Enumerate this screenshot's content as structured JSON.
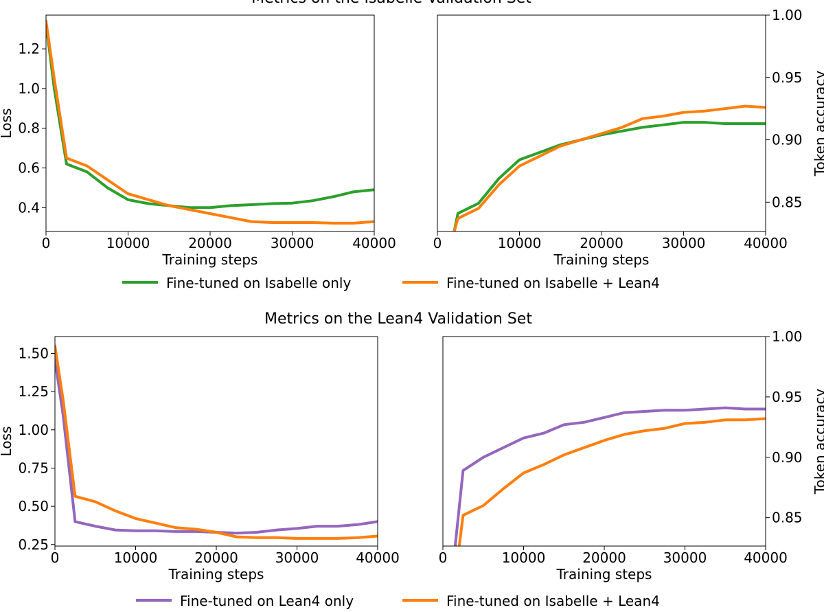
{
  "figure": {
    "top_title": "Metrics on the Isabelle Validation Set",
    "bottom_title": "Metrics on the Lean4 Validation Set"
  },
  "colors": {
    "green": "#2ca02c",
    "orange": "#ff7f0e",
    "purple": "#9467bd"
  },
  "legends": {
    "top": [
      {
        "label": "Fine-tuned on Isabelle only",
        "color": "#2ca02c"
      },
      {
        "label": "Fine-tuned on Isabelle + Lean4",
        "color": "#ff7f0e"
      }
    ],
    "bottom": [
      {
        "label": "Fine-tuned on Lean4 only",
        "color": "#9467bd"
      },
      {
        "label": "Fine-tuned on Isabelle + Lean4",
        "color": "#ff7f0e"
      }
    ]
  },
  "chart_data": [
    {
      "type": "line",
      "title": "Metrics on the Isabelle Validation Set",
      "xlabel": "Training steps",
      "ylabel": "Loss",
      "xlim": [
        0,
        40000
      ],
      "ylim": [
        0.28,
        1.37
      ],
      "xticks": [
        0,
        10000,
        20000,
        30000,
        40000
      ],
      "yticks": [
        0.4,
        0.6,
        0.8,
        1.0,
        1.2
      ],
      "yaxis_side": "left",
      "series": [
        {
          "name": "Fine-tuned on Isabelle only",
          "color": "#2ca02c",
          "x": [
            0,
            1000,
            2500,
            5000,
            7500,
            10000,
            12500,
            15000,
            17500,
            20000,
            22500,
            25000,
            27500,
            30000,
            32500,
            35000,
            37500,
            40000
          ],
          "y": [
            1.33,
            1.0,
            0.62,
            0.58,
            0.5,
            0.44,
            0.42,
            0.41,
            0.4,
            0.4,
            0.41,
            0.415,
            0.42,
            0.423,
            0.435,
            0.455,
            0.48,
            0.49
          ]
        },
        {
          "name": "Fine-tuned on Isabelle + Lean4",
          "color": "#ff7f0e",
          "x": [
            0,
            1000,
            2500,
            5000,
            7500,
            10000,
            12500,
            15000,
            17500,
            20000,
            22500,
            25000,
            27500,
            30000,
            32500,
            35000,
            37500,
            40000
          ],
          "y": [
            1.34,
            1.05,
            0.65,
            0.61,
            0.54,
            0.47,
            0.44,
            0.41,
            0.39,
            0.37,
            0.35,
            0.33,
            0.325,
            0.325,
            0.325,
            0.322,
            0.322,
            0.33
          ]
        }
      ]
    },
    {
      "type": "line",
      "title": "",
      "xlabel": "Training steps",
      "ylabel": "Token accuracy",
      "xlim": [
        0,
        40000
      ],
      "ylim": [
        0.8265,
        1.0
      ],
      "xticks": [
        0,
        10000,
        20000,
        30000,
        40000
      ],
      "yticks": [
        0.85,
        0.9,
        0.95,
        1.0
      ],
      "yaxis_side": "right",
      "series": [
        {
          "name": "Fine-tuned on Isabelle only",
          "color": "#2ca02c",
          "x": [
            2000,
            2500,
            5000,
            7500,
            10000,
            12500,
            15000,
            17500,
            20000,
            22500,
            25000,
            27500,
            30000,
            32500,
            35000,
            37500,
            40000
          ],
          "y": [
            0.825,
            0.841,
            0.849,
            0.869,
            0.884,
            0.89,
            0.896,
            0.9,
            0.904,
            0.907,
            0.91,
            0.912,
            0.914,
            0.914,
            0.913,
            0.913,
            0.913
          ]
        },
        {
          "name": "Fine-tuned on Isabelle + Lean4",
          "color": "#ff7f0e",
          "x": [
            2000,
            2500,
            5000,
            7500,
            10000,
            12500,
            15000,
            17500,
            20000,
            22500,
            25000,
            27500,
            30000,
            32500,
            35000,
            37500,
            40000
          ],
          "y": [
            0.825,
            0.837,
            0.845,
            0.864,
            0.879,
            0.887,
            0.895,
            0.9,
            0.905,
            0.91,
            0.917,
            0.919,
            0.922,
            0.923,
            0.925,
            0.927,
            0.926
          ]
        }
      ]
    },
    {
      "type": "line",
      "title": "Metrics on the Lean4 Validation Set",
      "xlabel": "Training steps",
      "ylabel": "Loss",
      "xlim": [
        0,
        40000
      ],
      "ylim": [
        0.24,
        1.61
      ],
      "xticks": [
        0,
        10000,
        20000,
        30000,
        40000
      ],
      "yticks": [
        0.25,
        0.5,
        0.75,
        1.0,
        1.25,
        1.5
      ],
      "yaxis_side": "left",
      "series": [
        {
          "name": "Fine-tuned on Lean4 only",
          "color": "#9467bd",
          "x": [
            0,
            1000,
            2500,
            5000,
            7500,
            10000,
            12500,
            15000,
            17500,
            20000,
            22500,
            25000,
            27500,
            30000,
            32500,
            35000,
            37500,
            40000
          ],
          "y": [
            1.46,
            1.1,
            0.4,
            0.37,
            0.345,
            0.34,
            0.34,
            0.335,
            0.335,
            0.33,
            0.325,
            0.33,
            0.345,
            0.355,
            0.37,
            0.37,
            0.38,
            0.4
          ]
        },
        {
          "name": "Fine-tuned on Isabelle + Lean4",
          "color": "#ff7f0e",
          "x": [
            0,
            1000,
            2500,
            5000,
            7500,
            10000,
            12500,
            15000,
            17500,
            20000,
            22500,
            25000,
            27500,
            30000,
            32500,
            35000,
            37500,
            40000
          ],
          "y": [
            1.55,
            1.2,
            0.565,
            0.53,
            0.47,
            0.42,
            0.39,
            0.36,
            0.35,
            0.33,
            0.3,
            0.295,
            0.295,
            0.29,
            0.29,
            0.29,
            0.295,
            0.305
          ]
        }
      ]
    },
    {
      "type": "line",
      "title": "",
      "xlabel": "Training steps",
      "ylabel": "Token accuracy",
      "xlim": [
        0,
        40000
      ],
      "ylim": [
        0.8265,
        1.0
      ],
      "xticks": [
        0,
        10000,
        20000,
        30000,
        40000
      ],
      "yticks": [
        0.85,
        0.9,
        0.95,
        1.0
      ],
      "yaxis_side": "right",
      "series": [
        {
          "name": "Fine-tuned on Lean4 only",
          "color": "#9467bd",
          "x": [
            1500,
            2500,
            5000,
            7500,
            10000,
            12500,
            15000,
            17500,
            20000,
            22500,
            25000,
            27500,
            30000,
            32500,
            35000,
            37500,
            40000
          ],
          "y": [
            0.825,
            0.889,
            0.9,
            0.908,
            0.916,
            0.92,
            0.927,
            0.929,
            0.933,
            0.937,
            0.938,
            0.939,
            0.939,
            0.94,
            0.941,
            0.94,
            0.94
          ]
        },
        {
          "name": "Fine-tuned on Isabelle + Lean4",
          "color": "#ff7f0e",
          "x": [
            2000,
            2500,
            5000,
            7500,
            10000,
            12500,
            15000,
            17500,
            20000,
            22500,
            25000,
            27500,
            30000,
            32500,
            35000,
            37500,
            40000
          ],
          "y": [
            0.825,
            0.852,
            0.86,
            0.874,
            0.887,
            0.894,
            0.902,
            0.908,
            0.914,
            0.919,
            0.922,
            0.924,
            0.928,
            0.929,
            0.931,
            0.931,
            0.932
          ]
        }
      ]
    }
  ]
}
